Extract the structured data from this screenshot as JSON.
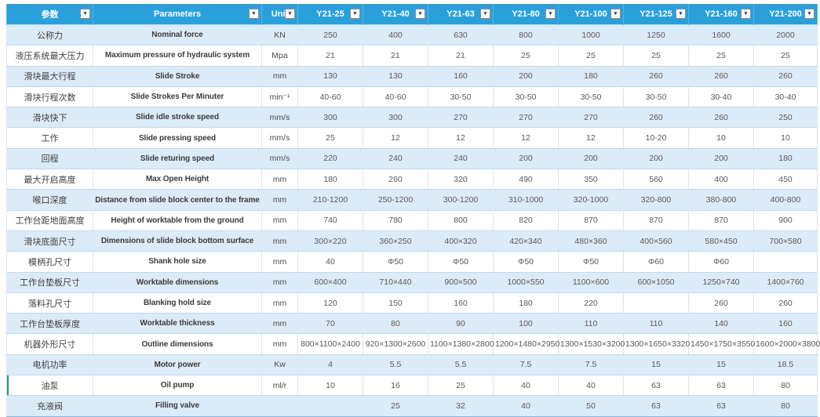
{
  "colors": {
    "header_bg": "#2AA0DB",
    "header_text": "#FFFFFF",
    "band_row_bg": "#DCEBF8",
    "grid_line": "#BDD9EF",
    "cell_text": "#595959",
    "selection_green": "#1E9E62"
  },
  "icons": {
    "filter_dropdown": "▼"
  },
  "table": {
    "headers": [
      {
        "label": "参数"
      },
      {
        "label": "Parameters"
      },
      {
        "label": "Unit"
      },
      {
        "label": "Y21-25"
      },
      {
        "label": "Y21-40"
      },
      {
        "label": "Y21-63"
      },
      {
        "label": "Y21-80"
      },
      {
        "label": "Y21-100"
      },
      {
        "label": "Y21-125"
      },
      {
        "label": "Y21-160"
      },
      {
        "label": "Y21-200"
      }
    ],
    "rows": [
      {
        "cn": "公称力",
        "en": "Nominal force",
        "unit": "KN",
        "values": [
          "250",
          "400",
          "630",
          "800",
          "1000",
          "1250",
          "1600",
          "2000"
        ]
      },
      {
        "cn": "液压系统最大压力",
        "en": "Maximum pressure of hydraulic system",
        "unit": "Mpa",
        "values": [
          "21",
          "21",
          "21",
          "25",
          "25",
          "25",
          "25",
          "25"
        ]
      },
      {
        "cn": "滑块最大行程",
        "en": "Slide Stroke",
        "unit": "mm",
        "values": [
          "130",
          "130",
          "160",
          "200",
          "180",
          "260",
          "260",
          "260"
        ]
      },
      {
        "cn": "滑块行程次数",
        "en": "Slide Strokes Per Minuter",
        "unit": "min⁻¹",
        "values": [
          "40-60",
          "40-60",
          "30-50",
          "30-50",
          "30-50",
          "30-50",
          "30-40",
          "30-40"
        ]
      },
      {
        "cn": "滑块快下",
        "en": "Slide idle stroke speed",
        "unit": "mm/s",
        "values": [
          "300",
          "300",
          "270",
          "270",
          "270",
          "260",
          "260",
          "250"
        ]
      },
      {
        "cn": "工作",
        "en": "Slide pressing speed",
        "unit": "mm/s",
        "values": [
          "25",
          "12",
          "12",
          "12",
          "12",
          "10-20",
          "10",
          "10"
        ]
      },
      {
        "cn": "回程",
        "en": "Slide returing speed",
        "unit": "mm/s",
        "values": [
          "220",
          "240",
          "240",
          "200",
          "200",
          "200",
          "200",
          "180"
        ]
      },
      {
        "cn": "最大开启高度",
        "en": "Max Open Height",
        "unit": "mm",
        "values": [
          "180",
          "260",
          "320",
          "490",
          "350",
          "560",
          "400",
          "450"
        ]
      },
      {
        "cn": "喉口深度",
        "en": "Distance from slide block center to the frame",
        "unit": "mm",
        "values": [
          "210-1200",
          "250-1200",
          "300-1200",
          "310-1000",
          "320-1000",
          "320-800",
          "380-800",
          "400-800"
        ]
      },
      {
        "cn": "工作台距地面高度",
        "en": "Height of worktable from the ground",
        "unit": "mm",
        "values": [
          "740",
          "780",
          "800",
          "820",
          "870",
          "870",
          "870",
          "900"
        ]
      },
      {
        "cn": "滑块底面尺寸",
        "en": "Dimensions of slide block bottom surface",
        "unit": "mm",
        "values": [
          "300×220",
          "360×250",
          "400×320",
          "420×340",
          "480×360",
          "400×560",
          "580×450",
          "700×580"
        ]
      },
      {
        "cn": "模柄孔尺寸",
        "en": "Shank hole size",
        "unit": "mm",
        "values": [
          "40",
          "Φ50",
          "Φ50",
          "Φ50",
          "Φ50",
          "Φ60",
          "Φ60",
          ""
        ]
      },
      {
        "cn": "工作台垫板尺寸",
        "en": "Worktable dimensions",
        "unit": "mm",
        "values": [
          "600×400",
          "710×440",
          "900×500",
          "1000×550",
          "1100×600",
          "600×1050",
          "1250×740",
          "1400×760"
        ]
      },
      {
        "cn": "落料孔尺寸",
        "en": "Blanking hold size",
        "unit": "mm",
        "values": [
          "120",
          "150",
          "160",
          "180",
          "220",
          "",
          "260",
          "260"
        ]
      },
      {
        "cn": "工作台垫板厚度",
        "en": "Worktable thickness",
        "unit": "mm",
        "values": [
          "70",
          "80",
          "90",
          "100",
          "110",
          "110",
          "140",
          "160"
        ]
      },
      {
        "cn": "机器外形尺寸",
        "en": "Outline dimensions",
        "unit": "mm",
        "values": [
          "800×1100×2400",
          "920×1300×2600",
          "1100×1380×2800",
          "1200×1480×2950",
          "1300×1530×3200",
          "1300×1650×3320",
          "1450×1750×3550",
          "1600×2000×3800"
        ]
      },
      {
        "cn": "电机功率",
        "en": "Motor power",
        "unit": "Kw",
        "values": [
          "4",
          "5.5",
          "5.5",
          "7.5",
          "7.5",
          "15",
          "15",
          "18.5"
        ]
      },
      {
        "cn": "油泵",
        "en": "Oil pump",
        "unit": "ml/r",
        "values": [
          "10",
          "16",
          "25",
          "40",
          "40",
          "63",
          "63",
          "80"
        ]
      },
      {
        "cn": "充液阀",
        "en": "Filling valve",
        "unit": "",
        "values": [
          "",
          "25",
          "32",
          "40",
          "50",
          "63",
          "63",
          "80"
        ]
      }
    ]
  }
}
